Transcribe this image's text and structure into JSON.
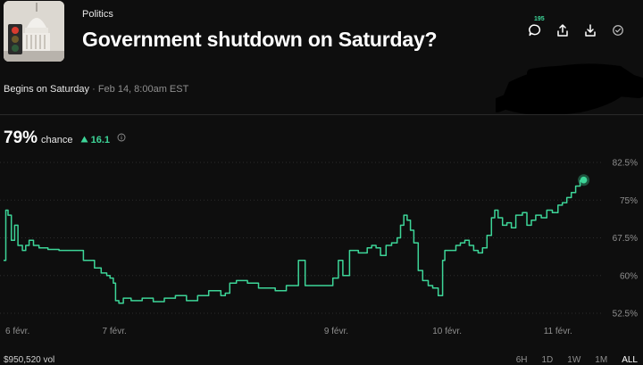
{
  "market": {
    "category": "Politics",
    "title": "Government shutdown on Saturday?",
    "begins_label": "Begins on Saturday",
    "separator": "·",
    "date": "Feb 14, 8:00am EST"
  },
  "actions": {
    "comment_count": "195",
    "icons": [
      "comment-icon",
      "share-icon",
      "download-icon",
      "check-circle-icon"
    ]
  },
  "odds": {
    "chance_value": "79%",
    "chance_label": "chance",
    "delta_value": "16.1",
    "delta_direction": "up"
  },
  "footer": {
    "volume": "$950,520 vol",
    "ranges": [
      "6H",
      "1D",
      "1W",
      "1M",
      "ALL"
    ],
    "active_range": "ALL"
  },
  "colors": {
    "background": "#0e0e0e",
    "accent_green": "#3dd598",
    "text_muted": "#8f8f8f"
  },
  "chart_data": {
    "type": "line",
    "ylim": [
      52.5,
      82.5
    ],
    "y_ticks": [
      82.5,
      75,
      67.5,
      60,
      52.5
    ],
    "y_tick_labels": [
      "82.5%",
      "75%",
      "67.5%",
      "60%",
      "52.5%"
    ],
    "x_range": [
      6,
      11.3
    ],
    "x_ticks": [
      6,
      7,
      9,
      10,
      11
    ],
    "x_tick_labels": [
      "6 févr.",
      "7 févr.",
      "9 févr.",
      "10 févr.",
      "11 févr."
    ],
    "grid": true,
    "series": [
      {
        "x": [
          6.0,
          6.02,
          6.04,
          6.07,
          6.1,
          6.13,
          6.17,
          6.2,
          6.23,
          6.27,
          6.32,
          6.4,
          6.5,
          6.6,
          6.72,
          6.82,
          6.88,
          6.93,
          6.96,
          6.99,
          7.01,
          7.04,
          7.08,
          7.15,
          7.25,
          7.35,
          7.45,
          7.55,
          7.65,
          7.75,
          7.85,
          7.92,
          7.96,
          8.0,
          8.04,
          8.1,
          8.2,
          8.3,
          8.45,
          8.55,
          8.62,
          8.66,
          8.72,
          8.8,
          8.9,
          8.97,
          9.02,
          9.06,
          9.12,
          9.2,
          9.28,
          9.32,
          9.36,
          9.4,
          9.45,
          9.5,
          9.55,
          9.58,
          9.61,
          9.64,
          9.67,
          9.7,
          9.74,
          9.78,
          9.83,
          9.87,
          9.92,
          9.96,
          9.98,
          10.0,
          10.04,
          10.08,
          10.12,
          10.16,
          10.2,
          10.24,
          10.28,
          10.32,
          10.36,
          10.4,
          10.43,
          10.46,
          10.5,
          10.54,
          10.58,
          10.62,
          10.68,
          10.72,
          10.76,
          10.8,
          10.85,
          10.9,
          10.95,
          11.0,
          11.04,
          11.08,
          11.12,
          11.16,
          11.2
        ],
        "y": [
          63,
          73,
          72,
          67,
          70,
          66,
          65,
          66,
          67,
          66,
          65.5,
          65.2,
          65,
          65,
          63,
          61.5,
          60.5,
          60,
          59.5,
          58.5,
          55,
          54.5,
          55.5,
          55,
          55.5,
          54.8,
          55.5,
          56,
          55,
          56,
          57,
          57,
          56,
          56.5,
          58.5,
          59,
          58.5,
          57.5,
          57,
          58,
          58,
          63,
          58,
          58,
          58,
          59.5,
          63,
          60,
          65,
          64.5,
          65.5,
          66,
          65.5,
          64,
          66,
          66.5,
          67.5,
          70,
          72,
          71,
          69,
          66.5,
          61,
          59,
          58,
          57.5,
          56,
          63,
          65,
          65,
          65,
          66,
          66.5,
          67,
          66,
          65,
          64.5,
          65.5,
          68,
          71.5,
          73,
          71.5,
          70,
          70.5,
          69.5,
          72,
          72.5,
          70,
          71,
          72,
          71.5,
          73,
          72.5,
          74,
          74.5,
          75.5,
          76.5,
          77.8,
          79
        ]
      }
    ]
  }
}
